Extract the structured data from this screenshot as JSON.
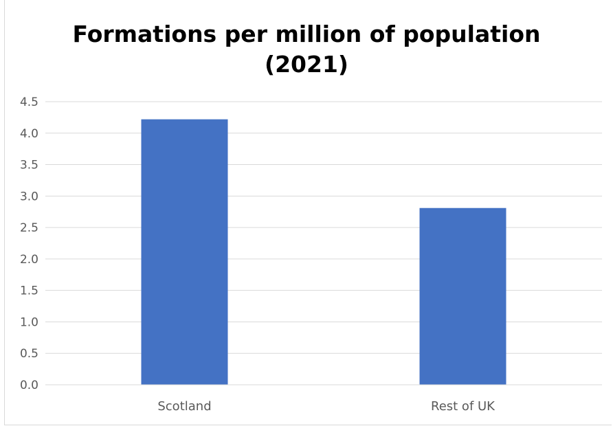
{
  "chart_data": {
    "type": "bar",
    "title_lines": [
      "Formations per million of population",
      "(2021)"
    ],
    "categories": [
      "Scotland",
      "Rest of UK"
    ],
    "values": [
      4.22,
      2.81
    ],
    "ylim": [
      0,
      4.5
    ],
    "yticks": [
      "0.0",
      "0.5",
      "1.0",
      "1.5",
      "2.0",
      "2.5",
      "3.0",
      "3.5",
      "4.0",
      "4.5"
    ],
    "ytick_values": [
      0,
      0.5,
      1.0,
      1.5,
      2.0,
      2.5,
      3.0,
      3.5,
      4.0,
      4.5
    ],
    "grid": true,
    "legend": "none",
    "bar_color": "#4472c4",
    "grid_color": "#d9d9d9",
    "label_color": "#595959"
  }
}
